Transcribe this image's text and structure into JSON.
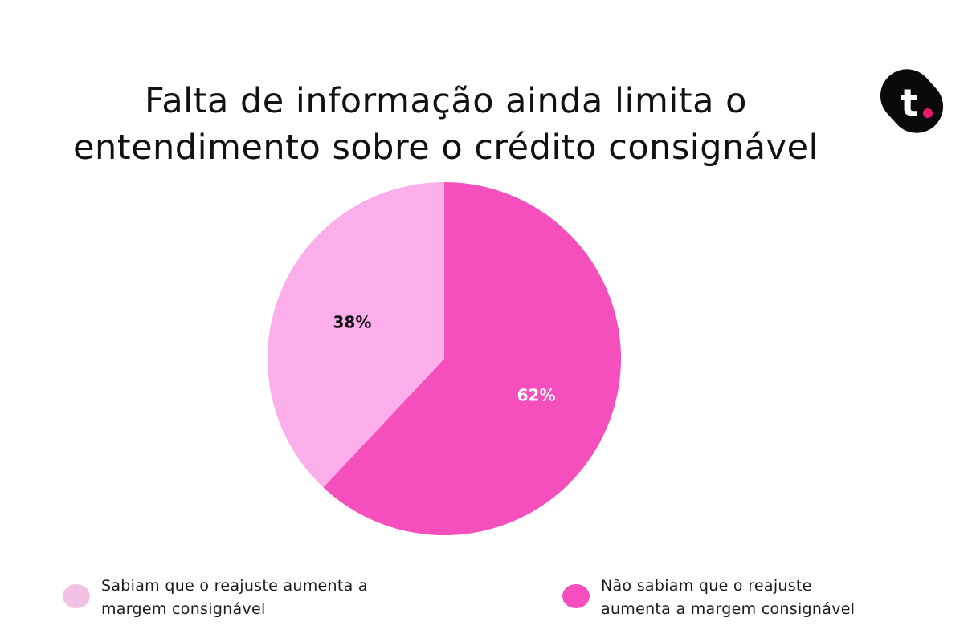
{
  "title": {
    "line1": "Falta de informação ainda limita o",
    "line2": "entendimento sobre o crédito consignável"
  },
  "logo": {
    "text": "t",
    "icon": "brand-t-logo",
    "colors": {
      "body": "#0a0a0a",
      "dot": "#e8186f",
      "letter": "#ffffff"
    }
  },
  "chart_data": {
    "type": "pie",
    "slices": [
      {
        "label": "Sabiam que o reajuste aumenta a margem consignável",
        "value": 38,
        "display": "38%",
        "color": "#fcaeea",
        "legend_color": "#f2c1e3",
        "label_color": "#111111"
      },
      {
        "label": "Não sabiam que o reajuste aumenta a margem consignável",
        "value": 62,
        "display": "62%",
        "color": "#f44fbd",
        "legend_color": "#f44fbd",
        "label_color": "#ffffff"
      }
    ],
    "legend_placement": "bottom"
  },
  "legend": [
    {
      "text": "Sabiam que o reajuste aumenta a\nmargem consignável"
    },
    {
      "text": "Não sabiam que o reajuste\naumenta a margem consignável"
    }
  ]
}
